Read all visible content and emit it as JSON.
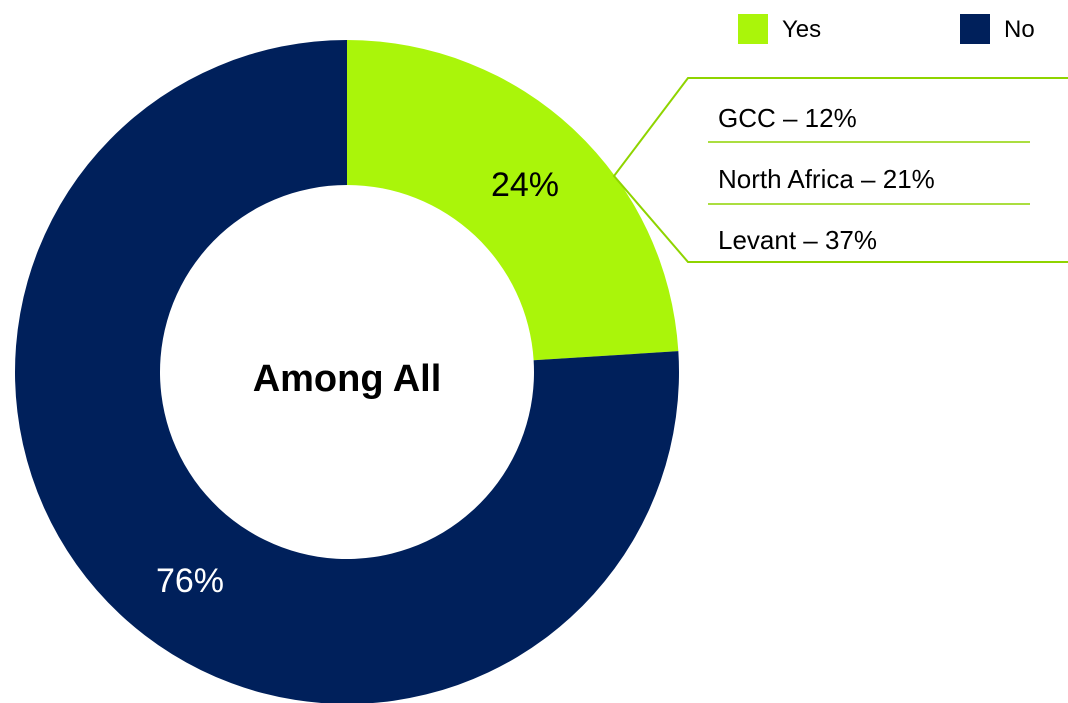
{
  "chart_data": {
    "type": "pie",
    "donut": true,
    "center_label": "Among All",
    "categories": [
      "Yes",
      "No"
    ],
    "values": [
      24,
      76
    ],
    "value_labels": [
      "24%",
      "76%"
    ],
    "colors": [
      "#aaf50a",
      "#00205b"
    ],
    "label_colors": [
      "#000000",
      "#ffffff"
    ],
    "legend": {
      "placement": "top-right",
      "entries": [
        {
          "label": "Yes",
          "color": "#aaf50a"
        },
        {
          "label": "No",
          "color": "#00205b"
        }
      ]
    },
    "annotation": {
      "attached_to": "Yes",
      "line_color": "#8fd400",
      "items": [
        {
          "text": "GCC  – 12%",
          "region": "GCC",
          "value": 12
        },
        {
          "text": "North Africa – 21%",
          "region": "North Africa",
          "value": 21
        },
        {
          "text": "Levant – 37%",
          "region": "Levant",
          "value": 37
        }
      ]
    }
  }
}
